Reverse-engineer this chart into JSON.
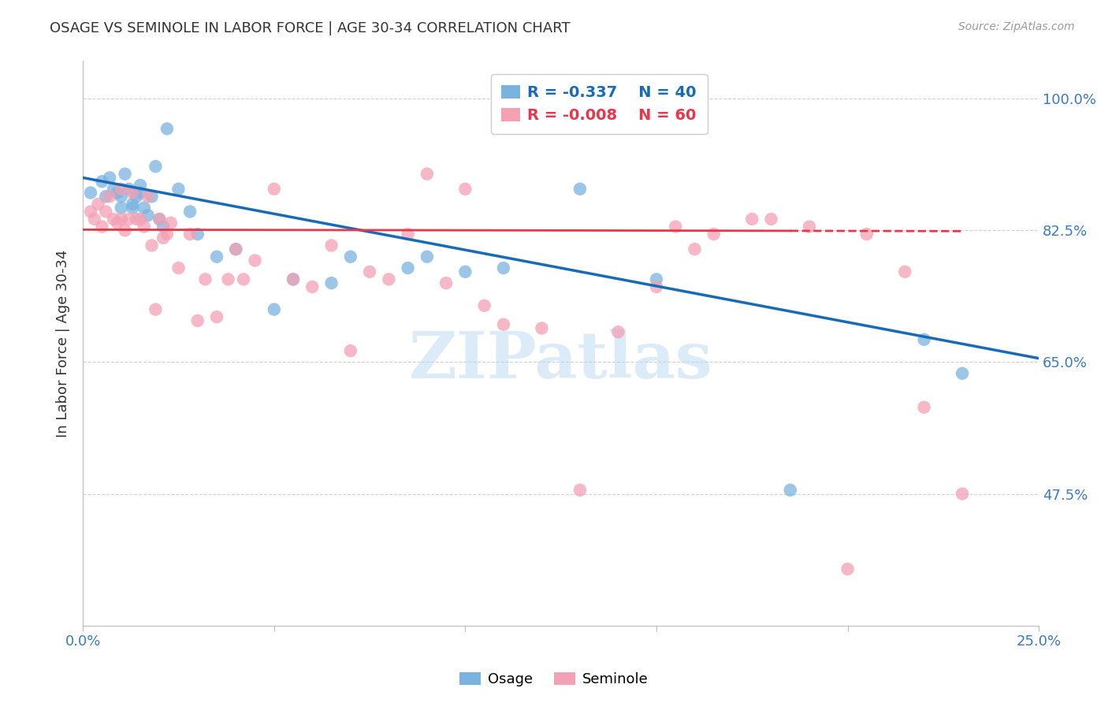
{
  "title": "OSAGE VS SEMINOLE IN LABOR FORCE | AGE 30-34 CORRELATION CHART",
  "source": "Source: ZipAtlas.com",
  "ylabel": "In Labor Force | Age 30-34",
  "xlim": [
    0.0,
    0.25
  ],
  "ylim": [
    0.3,
    1.05
  ],
  "yticks": [
    0.475,
    0.65,
    0.825,
    1.0
  ],
  "ytick_labels": [
    "47.5%",
    "65.0%",
    "82.5%",
    "100.0%"
  ],
  "xticks": [
    0.0,
    0.05,
    0.1,
    0.15,
    0.2,
    0.25
  ],
  "xtick_labels": [
    "0.0%",
    "",
    "",
    "",
    "",
    "25.0%"
  ],
  "osage_color": "#7ab3e0",
  "seminole_color": "#f4a0b5",
  "trend_osage_color": "#1a6bb5",
  "trend_seminole_color": "#e8374a",
  "R_osage": -0.337,
  "N_osage": 40,
  "R_seminole": -0.008,
  "N_seminole": 60,
  "legend_label_osage": "Osage",
  "legend_label_seminole": "Seminole",
  "osage_x": [
    0.002,
    0.005,
    0.006,
    0.007,
    0.008,
    0.009,
    0.01,
    0.01,
    0.011,
    0.012,
    0.013,
    0.013,
    0.014,
    0.015,
    0.015,
    0.016,
    0.017,
    0.018,
    0.019,
    0.02,
    0.021,
    0.022,
    0.025,
    0.028,
    0.03,
    0.035,
    0.04,
    0.05,
    0.055,
    0.065,
    0.07,
    0.085,
    0.09,
    0.1,
    0.11,
    0.13,
    0.15,
    0.185,
    0.22,
    0.23
  ],
  "osage_y": [
    0.875,
    0.89,
    0.87,
    0.895,
    0.88,
    0.875,
    0.87,
    0.855,
    0.9,
    0.88,
    0.86,
    0.855,
    0.87,
    0.885,
    0.875,
    0.855,
    0.845,
    0.87,
    0.91,
    0.84,
    0.83,
    0.96,
    0.88,
    0.85,
    0.82,
    0.79,
    0.8,
    0.72,
    0.76,
    0.755,
    0.79,
    0.775,
    0.79,
    0.77,
    0.775,
    0.88,
    0.76,
    0.48,
    0.68,
    0.635
  ],
  "seminole_x": [
    0.002,
    0.003,
    0.004,
    0.005,
    0.006,
    0.007,
    0.008,
    0.009,
    0.01,
    0.01,
    0.011,
    0.012,
    0.013,
    0.014,
    0.015,
    0.016,
    0.017,
    0.018,
    0.019,
    0.02,
    0.021,
    0.022,
    0.023,
    0.025,
    0.028,
    0.03,
    0.032,
    0.035,
    0.038,
    0.04,
    0.042,
    0.045,
    0.05,
    0.055,
    0.06,
    0.065,
    0.07,
    0.075,
    0.08,
    0.085,
    0.09,
    0.095,
    0.1,
    0.105,
    0.11,
    0.12,
    0.13,
    0.14,
    0.15,
    0.155,
    0.16,
    0.165,
    0.175,
    0.18,
    0.19,
    0.2,
    0.205,
    0.215,
    0.22,
    0.23
  ],
  "seminole_y": [
    0.85,
    0.84,
    0.86,
    0.83,
    0.85,
    0.87,
    0.84,
    0.835,
    0.88,
    0.84,
    0.825,
    0.84,
    0.875,
    0.84,
    0.84,
    0.83,
    0.87,
    0.805,
    0.72,
    0.84,
    0.815,
    0.82,
    0.835,
    0.775,
    0.82,
    0.705,
    0.76,
    0.71,
    0.76,
    0.8,
    0.76,
    0.785,
    0.88,
    0.76,
    0.75,
    0.805,
    0.665,
    0.77,
    0.76,
    0.82,
    0.9,
    0.755,
    0.88,
    0.725,
    0.7,
    0.695,
    0.48,
    0.69,
    0.75,
    0.83,
    0.8,
    0.82,
    0.84,
    0.84,
    0.83,
    0.375,
    0.82,
    0.77,
    0.59,
    0.475
  ],
  "background_color": "#ffffff",
  "grid_color": "#d0d0d0",
  "watermark_text": "ZIPatlas",
  "osage_trend_x0": 0.0,
  "osage_trend_y0": 0.895,
  "osage_trend_x1": 0.25,
  "osage_trend_y1": 0.655,
  "seminole_trend_x0": 0.0,
  "seminole_trend_y0": 0.826,
  "seminole_trend_x1": 0.23,
  "seminole_trend_y1": 0.824
}
